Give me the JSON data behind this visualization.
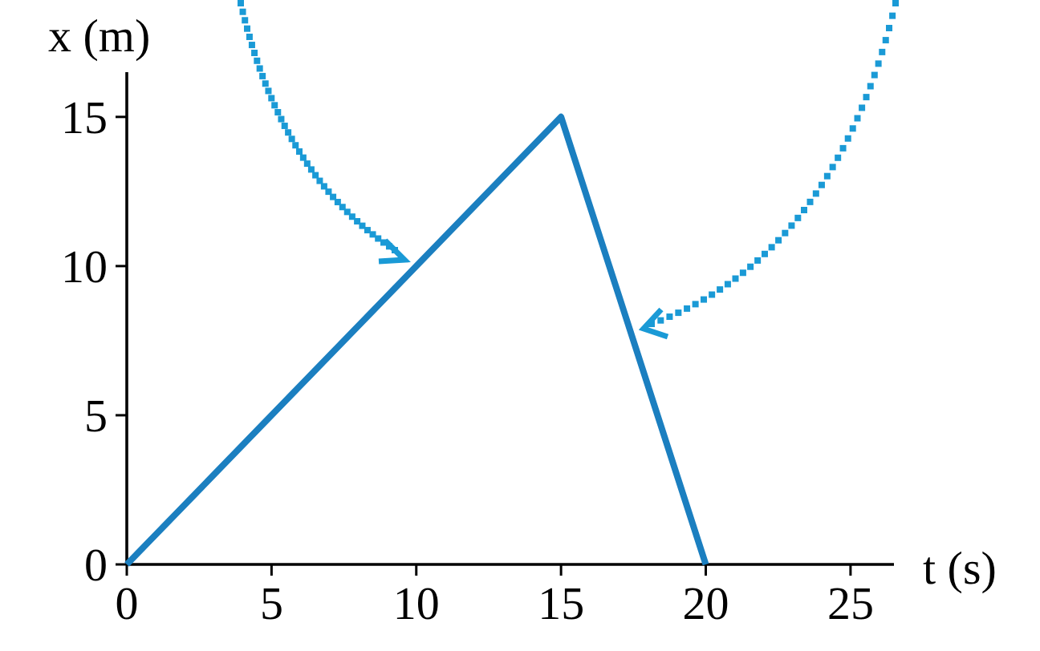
{
  "chart_data": {
    "type": "line",
    "xlabel": "t (s)",
    "ylabel": "x (m)",
    "x": [
      0,
      15,
      20
    ],
    "series": [
      {
        "color": "#1b7fc0",
        "values": [
          0,
          15,
          0
        ]
      }
    ],
    "xlim": [
      0,
      26.5
    ],
    "ylim": [
      0,
      16.5
    ],
    "xticks": [
      0,
      5,
      10,
      15,
      20,
      25
    ],
    "yticks": [
      0,
      5,
      10,
      15
    ],
    "grid": false,
    "marker": "none",
    "line_style": "solid"
  }
}
